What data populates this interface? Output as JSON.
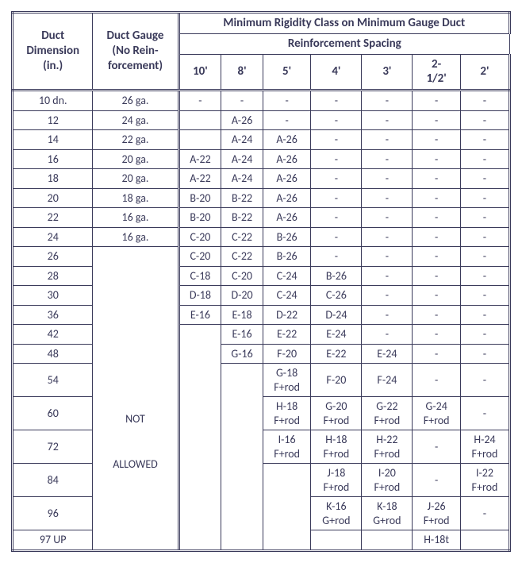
{
  "headers": {
    "duct_dimension": "Duct\nDimension\n(in.)",
    "duct_gauge": "Duct Gauge\n(No Rein-\nforcement)",
    "top_group": "Minimum Rigidity Class on Minimum Gauge Duct",
    "sub_group": "Reinforcement Spacing",
    "spacing_cols": [
      "10'",
      "8'",
      "5'",
      "4'",
      "3'",
      "2-\n1/2'",
      "2'"
    ]
  },
  "not_allowed_label": "NOT",
  "allowed_label": "ALLOWED",
  "colors": {
    "text": "#3a3a5a",
    "border": "#3a3a5a",
    "background": "#ffffff"
  },
  "rows": [
    {
      "dim": "10 dn.",
      "gauge": "26 ga.",
      "c": [
        "-",
        "-",
        "-",
        "-",
        "-",
        "-",
        "-"
      ]
    },
    {
      "dim": "12",
      "gauge": "24 ga.",
      "c": [
        "",
        "A-26",
        "-",
        "-",
        "-",
        "-",
        "-"
      ]
    },
    {
      "dim": "14",
      "gauge": "22 ga.",
      "c": [
        "",
        "A-24",
        "A-26",
        "-",
        "-",
        "-",
        "-"
      ]
    },
    {
      "dim": "16",
      "gauge": "20 ga.",
      "c": [
        "A-22",
        "A-24",
        "A-26",
        "-",
        "-",
        "-",
        "-"
      ]
    },
    {
      "dim": "18",
      "gauge": "20 ga.",
      "c": [
        "A-22",
        "A-24",
        "A-26",
        "-",
        "-",
        "-",
        "-"
      ]
    },
    {
      "dim": "20",
      "gauge": "18 ga.",
      "c": [
        "B-20",
        "B-22",
        "A-26",
        "-",
        "-",
        "-",
        "-"
      ]
    },
    {
      "dim": "22",
      "gauge": "16 ga.",
      "c": [
        "B-20",
        "B-22",
        "A-26",
        "-",
        "-",
        "-",
        "-"
      ]
    },
    {
      "dim": "24",
      "gauge": "16 ga.",
      "c": [
        "C-20",
        "C-22",
        "B-26",
        "-",
        "-",
        "-",
        "-"
      ]
    },
    {
      "dim": "26",
      "gauge": null,
      "c": [
        "C-20",
        "C-22",
        "B-26",
        "-",
        "-",
        "-",
        "-"
      ]
    },
    {
      "dim": "28",
      "gauge": null,
      "c": [
        "C-18",
        "C-20",
        "C-24",
        "B-26",
        "-",
        "-",
        "-"
      ]
    },
    {
      "dim": "30",
      "gauge": null,
      "c": [
        "D-18",
        "D-20",
        "C-24",
        "C-26",
        "-",
        "-",
        "-"
      ]
    },
    {
      "dim": "36",
      "gauge": null,
      "c": [
        "E-16",
        "E-18",
        "D-22",
        "D-24",
        "-",
        "-",
        "-"
      ]
    },
    {
      "dim": "42",
      "gauge": null,
      "c": [
        "",
        "E-16",
        "E-22",
        "E-24",
        "-",
        "-",
        "-"
      ]
    },
    {
      "dim": "48",
      "gauge": null,
      "c": [
        "",
        "G-16",
        "F-20",
        "E-22",
        "E-24",
        "-",
        "-"
      ]
    },
    {
      "dim": "54",
      "gauge": null,
      "c": [
        "",
        "",
        "G-18\nF+rod",
        "F-20",
        "F-24",
        "-",
        "-"
      ]
    },
    {
      "dim": "60",
      "gauge": null,
      "c": [
        "",
        "",
        "H-18\nF+rod",
        "G-20\nF+rod",
        "G-22\nF+rod",
        "G-24\nF+rod",
        "-"
      ]
    },
    {
      "dim": "72",
      "gauge": null,
      "c": [
        "",
        "",
        "I-16\nF+rod",
        "H-18\nF+rod",
        "H-22\nF+rod",
        "-",
        "H-24\nF+rod"
      ]
    },
    {
      "dim": "84",
      "gauge": null,
      "c": [
        "",
        "",
        "",
        "J-18\nF+rod",
        "I-20\nF+rod",
        "-",
        "I-22\nF+rod"
      ]
    },
    {
      "dim": "96",
      "gauge": null,
      "c": [
        "",
        "",
        "",
        "K-16\nG+rod",
        "K-18\nG+rod",
        "J-26\nF+rod",
        "-"
      ]
    },
    {
      "dim": "97 UP",
      "gauge": null,
      "c": [
        "",
        "",
        "",
        "",
        "",
        "H-18t",
        ""
      ]
    }
  ]
}
